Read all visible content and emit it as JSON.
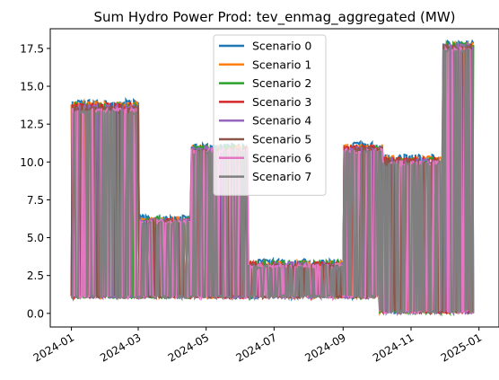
{
  "chart_data": {
    "type": "line",
    "title": "Sum Hydro Power Prod: tev_enmag_aggregated (MW)",
    "xlabel": "",
    "ylabel": "",
    "xlim": [
      "2023-12-13",
      "2025-01-19"
    ],
    "ylim": [
      -0.9,
      18.8
    ],
    "xticks": [
      {
        "value": "2024-01-01",
        "label": "2024-01"
      },
      {
        "value": "2024-03-01",
        "label": "2024-03"
      },
      {
        "value": "2024-05-01",
        "label": "2024-05"
      },
      {
        "value": "2024-07-01",
        "label": "2024-07"
      },
      {
        "value": "2024-09-01",
        "label": "2024-09"
      },
      {
        "value": "2024-11-01",
        "label": "2024-11"
      },
      {
        "value": "2025-01-01",
        "label": "2025-01"
      }
    ],
    "yticks": [
      {
        "value": 0,
        "label": "0.0"
      },
      {
        "value": 2.5,
        "label": "2.5"
      },
      {
        "value": 5,
        "label": "5.0"
      },
      {
        "value": 7.5,
        "label": "7.5"
      },
      {
        "value": 10,
        "label": "10.0"
      },
      {
        "value": 12.5,
        "label": "12.5"
      },
      {
        "value": 15,
        "label": "15.0"
      },
      {
        "value": 17.5,
        "label": "17.5"
      }
    ],
    "grid": false,
    "legend_position": "top-center",
    "series": [
      {
        "name": "Scenario 0",
        "color": "#1f77b4",
        "envelope": [
          [
            "2024-01-01",
            14.1
          ],
          [
            "2024-03-01",
            14.1
          ],
          [
            "2024-03-03",
            6.5
          ],
          [
            "2024-03-28",
            6.5
          ],
          [
            "2024-04-18",
            11.2
          ],
          [
            "2024-06-06",
            11.2
          ],
          [
            "2024-06-08",
            3.6
          ],
          [
            "2024-08-31",
            3.6
          ],
          [
            "2024-09-01",
            11.3
          ],
          [
            "2024-10-05",
            11.3
          ],
          [
            "2024-10-07",
            10.5
          ],
          [
            "2024-11-20",
            10.5
          ],
          [
            "2024-11-30",
            18.0
          ],
          [
            "2024-12-27",
            18.0
          ]
        ]
      },
      {
        "name": "Scenario 1",
        "color": "#ff7f0e",
        "envelope": [
          [
            "2024-01-01",
            14.0
          ],
          [
            "2024-03-01",
            14.0
          ],
          [
            "2024-03-03",
            6.4
          ],
          [
            "2024-03-28",
            6.4
          ],
          [
            "2024-04-18",
            11.1
          ],
          [
            "2024-06-06",
            11.1
          ],
          [
            "2024-06-08",
            3.5
          ],
          [
            "2024-08-31",
            3.5
          ],
          [
            "2024-09-01",
            11.2
          ],
          [
            "2024-10-05",
            11.2
          ],
          [
            "2024-10-07",
            10.4
          ],
          [
            "2024-11-20",
            10.4
          ],
          [
            "2024-11-30",
            17.9
          ],
          [
            "2024-12-27",
            17.9
          ]
        ]
      },
      {
        "name": "Scenario 2",
        "color": "#2ca02c",
        "envelope": [
          [
            "2024-01-01",
            13.9
          ],
          [
            "2024-03-01",
            13.9
          ],
          [
            "2024-03-03",
            6.4
          ],
          [
            "2024-03-28",
            6.4
          ],
          [
            "2024-04-18",
            11.1
          ],
          [
            "2024-06-06",
            11.1
          ],
          [
            "2024-06-08",
            3.5
          ],
          [
            "2024-08-31",
            3.5
          ],
          [
            "2024-09-01",
            11.1
          ],
          [
            "2024-10-05",
            11.1
          ],
          [
            "2024-10-07",
            10.3
          ],
          [
            "2024-11-20",
            10.3
          ],
          [
            "2024-11-30",
            17.9
          ],
          [
            "2024-12-27",
            17.9
          ]
        ]
      },
      {
        "name": "Scenario 3",
        "color": "#d62728",
        "envelope": [
          [
            "2024-01-01",
            13.9
          ],
          [
            "2024-03-01",
            13.9
          ],
          [
            "2024-03-03",
            6.3
          ],
          [
            "2024-03-28",
            6.3
          ],
          [
            "2024-04-18",
            11.0
          ],
          [
            "2024-06-06",
            11.0
          ],
          [
            "2024-06-08",
            3.4
          ],
          [
            "2024-08-31",
            3.4
          ],
          [
            "2024-09-01",
            11.1
          ],
          [
            "2024-10-05",
            11.1
          ],
          [
            "2024-10-07",
            10.3
          ],
          [
            "2024-11-20",
            10.3
          ],
          [
            "2024-11-30",
            17.8
          ],
          [
            "2024-12-27",
            17.8
          ]
        ]
      },
      {
        "name": "Scenario 4",
        "color": "#9467bd",
        "envelope": [
          [
            "2024-01-01",
            13.8
          ],
          [
            "2024-03-01",
            13.8
          ],
          [
            "2024-03-03",
            6.3
          ],
          [
            "2024-03-28",
            6.3
          ],
          [
            "2024-04-18",
            11.0
          ],
          [
            "2024-06-06",
            11.0
          ],
          [
            "2024-06-08",
            3.4
          ],
          [
            "2024-08-31",
            3.4
          ],
          [
            "2024-09-01",
            11.0
          ],
          [
            "2024-10-05",
            11.0
          ],
          [
            "2024-10-07",
            10.2
          ],
          [
            "2024-11-20",
            10.2
          ],
          [
            "2024-11-30",
            17.8
          ],
          [
            "2024-12-27",
            17.8
          ]
        ]
      },
      {
        "name": "Scenario 5",
        "color": "#8c564b",
        "envelope": [
          [
            "2024-01-01",
            13.7
          ],
          [
            "2024-03-01",
            13.7
          ],
          [
            "2024-03-03",
            6.2
          ],
          [
            "2024-03-28",
            6.2
          ],
          [
            "2024-04-18",
            10.9
          ],
          [
            "2024-06-06",
            10.9
          ],
          [
            "2024-06-08",
            3.3
          ],
          [
            "2024-08-31",
            3.3
          ],
          [
            "2024-09-01",
            11.0
          ],
          [
            "2024-10-05",
            11.0
          ],
          [
            "2024-10-07",
            10.2
          ],
          [
            "2024-11-20",
            10.2
          ],
          [
            "2024-11-30",
            17.7
          ],
          [
            "2024-12-27",
            17.7
          ]
        ]
      },
      {
        "name": "Scenario 6",
        "color": "#e377c2",
        "envelope": [
          [
            "2024-01-01",
            13.6
          ],
          [
            "2024-03-01",
            13.6
          ],
          [
            "2024-03-03",
            6.2
          ],
          [
            "2024-03-28",
            6.2
          ],
          [
            "2024-04-18",
            10.9
          ],
          [
            "2024-06-06",
            10.9
          ],
          [
            "2024-06-08",
            3.3
          ],
          [
            "2024-08-31",
            3.3
          ],
          [
            "2024-09-01",
            10.9
          ],
          [
            "2024-10-05",
            10.9
          ],
          [
            "2024-10-07",
            10.1
          ],
          [
            "2024-11-20",
            10.1
          ],
          [
            "2024-11-30",
            17.6
          ],
          [
            "2024-12-27",
            17.6
          ]
        ]
      },
      {
        "name": "Scenario 7",
        "color": "#7f7f7f",
        "envelope": [
          [
            "2024-01-01",
            13.4
          ],
          [
            "2024-03-01",
            13.4
          ],
          [
            "2024-03-03",
            6.1
          ],
          [
            "2024-03-28",
            6.1
          ],
          [
            "2024-04-18",
            10.8
          ],
          [
            "2024-06-06",
            10.8
          ],
          [
            "2024-06-08",
            3.2
          ],
          [
            "2024-08-31",
            3.2
          ],
          [
            "2024-09-01",
            10.8
          ],
          [
            "2024-10-05",
            10.8
          ],
          [
            "2024-10-07",
            10.0
          ],
          [
            "2024-11-20",
            10.0
          ],
          [
            "2024-11-30",
            17.5
          ],
          [
            "2024-12-27",
            17.5
          ]
        ]
      }
    ]
  }
}
